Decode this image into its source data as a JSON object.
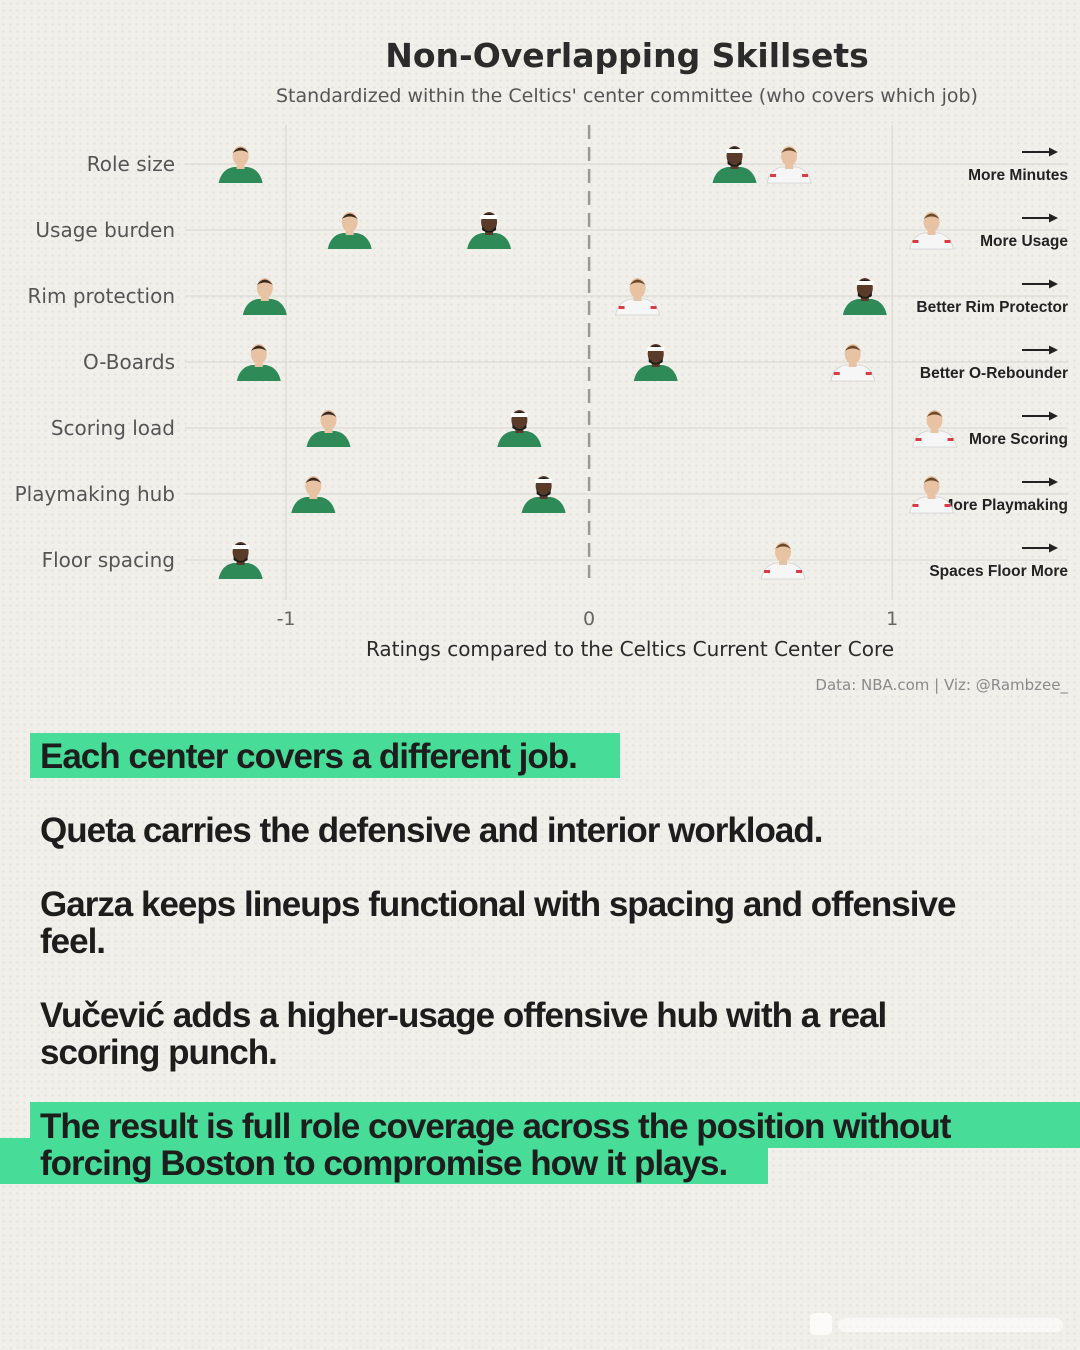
{
  "chart_data": {
    "type": "scatter",
    "title": "Non-Overlapping Skillsets",
    "subtitle": "Standardized within the Celtics' center committee (who covers which job)",
    "xlabel": "Ratings compared to the Celtics Current Center Core",
    "xlim": [
      -1.35,
      1.62
    ],
    "xticks": [
      -1,
      0,
      1
    ],
    "xtick_labels": [
      "-1",
      "0",
      "1"
    ],
    "grid": true,
    "categories": [
      "Role size",
      "Usage burden",
      "Rim protection",
      "O-Boards",
      "Scoring load",
      "Playmaking hub",
      "Floor spacing"
    ],
    "direction_labels": [
      "More Minutes",
      "More Usage",
      "Better Rim Protector",
      "Better O-Rebounder",
      "More Scoring",
      "More Playmaking",
      "Spaces Floor More"
    ],
    "series": [
      {
        "values": [
          -1.15,
          -0.79,
          -1.07,
          -1.09,
          -0.86,
          -0.91,
          -1.15
        ],
        "marker_style": "green-jersey-headshot",
        "color": "#2e8b57"
      },
      {
        "values": [
          0.48,
          -0.33,
          0.91,
          0.22,
          -0.23,
          -0.15,
          -1.15
        ],
        "marker_style": "green-jersey-headshot",
        "color": "#2e8b57"
      },
      {
        "values": [
          0.66,
          1.13,
          0.16,
          0.87,
          1.14,
          1.13,
          0.64
        ],
        "marker_style": "white-jersey-headshot",
        "color": "#d83c45"
      }
    ],
    "colors": {
      "zero_line": "#999999",
      "grid": "#dcdad4",
      "arrow": "#222222"
    }
  },
  "source_note": "Data: NBA.com | Viz: @Rambzee_",
  "text_blocks": {
    "intro": "Each center covers a different job.",
    "queta": "Queta carries the defensive and interior workload.",
    "garza_line1": " Garza keeps lineups functional with spacing and offensive",
    "garza_line2": "feel.",
    "vucevic_line1": "Vučević adds a higher-usage offensive hub with a real",
    "vucevic_line2": "scoring punch.",
    "result_line1": "The result is full role coverage across the position without",
    "result_line2": "forcing Boston to compromise how it plays."
  },
  "colors": {
    "highlight": "#47dc97",
    "background": "#f1efea",
    "text": "#1d1d1d"
  }
}
